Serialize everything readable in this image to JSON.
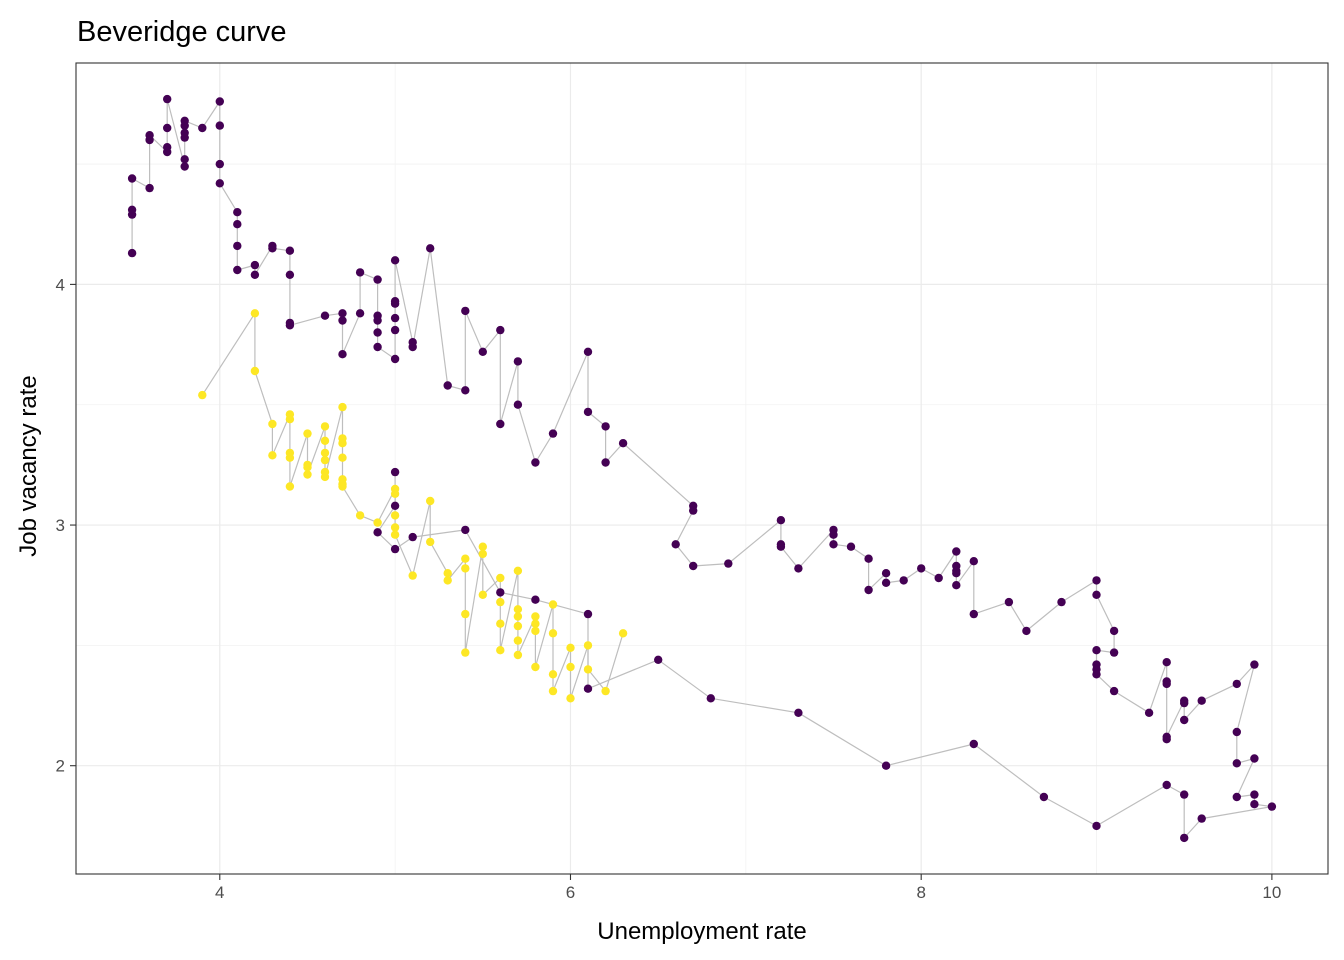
{
  "chart_data": {
    "type": "scatter",
    "title": "Beveridge curve",
    "xlabel": "Unemployment rate",
    "ylabel": "Job vacancy rate",
    "xlim": [
      3.18,
      10.32
    ],
    "ylim": [
      1.55,
      4.92
    ],
    "x_ticks": [
      4,
      6,
      8,
      10
    ],
    "y_ticks": [
      2,
      3,
      4
    ],
    "grid": true,
    "legend": "none",
    "connector_color": "#bebebe",
    "series": [
      {
        "color": "#440154",
        "points": [
          [
            3.5,
            4.13
          ],
          [
            3.5,
            4.29
          ],
          [
            3.5,
            4.31
          ],
          [
            3.5,
            4.44
          ],
          [
            3.6,
            4.4
          ],
          [
            3.6,
            4.6
          ],
          [
            3.6,
            4.62
          ],
          [
            3.7,
            4.55
          ],
          [
            3.7,
            4.57
          ],
          [
            3.7,
            4.65
          ],
          [
            3.7,
            4.77
          ],
          [
            3.8,
            4.49
          ],
          [
            3.8,
            4.52
          ],
          [
            3.8,
            4.61
          ],
          [
            3.8,
            4.63
          ],
          [
            3.8,
            4.66
          ],
          [
            3.8,
            4.68
          ],
          [
            3.9,
            4.65
          ],
          [
            4.0,
            4.76
          ],
          [
            4.0,
            4.66
          ],
          [
            4.0,
            4.5
          ],
          [
            4.0,
            4.42
          ],
          [
            4.1,
            4.3
          ],
          [
            4.1,
            4.25
          ],
          [
            4.1,
            4.16
          ],
          [
            4.1,
            4.06
          ],
          [
            4.2,
            4.08
          ],
          [
            4.2,
            4.04
          ],
          [
            4.3,
            4.16
          ],
          [
            4.3,
            4.15
          ],
          [
            4.4,
            4.14
          ],
          [
            4.4,
            4.04
          ],
          [
            4.4,
            3.84
          ],
          [
            4.4,
            3.83
          ],
          [
            4.6,
            3.87
          ],
          [
            4.7,
            3.88
          ],
          [
            4.7,
            3.85
          ],
          [
            4.7,
            3.71
          ],
          [
            4.8,
            3.88
          ],
          [
            4.8,
            4.05
          ],
          [
            4.9,
            4.02
          ],
          [
            4.9,
            3.87
          ],
          [
            4.9,
            3.85
          ],
          [
            4.9,
            3.8
          ],
          [
            4.9,
            3.74
          ],
          [
            5.0,
            3.69
          ],
          [
            5.0,
            3.81
          ],
          [
            5.0,
            3.86
          ],
          [
            5.0,
            3.92
          ],
          [
            5.0,
            3.93
          ],
          [
            5.0,
            4.1
          ],
          [
            5.1,
            3.76
          ],
          [
            5.1,
            3.74
          ],
          [
            5.2,
            4.15
          ],
          [
            5.3,
            3.58
          ],
          [
            5.4,
            3.56
          ],
          [
            5.4,
            3.89
          ],
          [
            5.5,
            3.72
          ],
          [
            5.6,
            3.81
          ],
          [
            5.6,
            3.42
          ],
          [
            5.7,
            3.68
          ],
          [
            5.7,
            3.5
          ],
          [
            5.8,
            3.26
          ],
          [
            5.9,
            3.38
          ],
          [
            6.1,
            3.72
          ],
          [
            6.1,
            3.47
          ],
          [
            6.2,
            3.41
          ],
          [
            6.2,
            3.26
          ],
          [
            6.3,
            3.34
          ],
          [
            6.7,
            3.08
          ],
          [
            6.7,
            3.06
          ],
          [
            6.6,
            2.92
          ],
          [
            6.7,
            2.83
          ],
          [
            6.9,
            2.84
          ],
          [
            7.2,
            3.02
          ],
          [
            7.2,
            2.92
          ],
          [
            7.2,
            2.91
          ],
          [
            7.3,
            2.82
          ],
          [
            7.5,
            2.98
          ],
          [
            7.5,
            2.96
          ],
          [
            7.5,
            2.92
          ],
          [
            7.6,
            2.91
          ],
          [
            7.7,
            2.86
          ],
          [
            7.7,
            2.73
          ],
          [
            7.8,
            2.8
          ],
          [
            7.8,
            2.76
          ],
          [
            7.9,
            2.77
          ],
          [
            8.0,
            2.82
          ],
          [
            8.1,
            2.78
          ],
          [
            8.2,
            2.89
          ],
          [
            8.2,
            2.83
          ],
          [
            8.2,
            2.81
          ],
          [
            8.2,
            2.8
          ],
          [
            8.2,
            2.75
          ],
          [
            8.3,
            2.85
          ],
          [
            8.3,
            2.63
          ],
          [
            8.5,
            2.68
          ],
          [
            8.6,
            2.56
          ],
          [
            8.8,
            2.68
          ],
          [
            9.0,
            2.77
          ],
          [
            9.0,
            2.71
          ],
          [
            9.1,
            2.56
          ],
          [
            9.1,
            2.47
          ],
          [
            9.0,
            2.48
          ],
          [
            9.0,
            2.42
          ],
          [
            9.0,
            2.4
          ],
          [
            9.0,
            2.38
          ],
          [
            9.1,
            2.31
          ],
          [
            9.3,
            2.22
          ],
          [
            9.4,
            2.43
          ],
          [
            9.4,
            2.35
          ],
          [
            9.4,
            2.34
          ],
          [
            9.4,
            2.11
          ],
          [
            9.4,
            2.12
          ],
          [
            9.5,
            2.27
          ],
          [
            9.5,
            2.26
          ],
          [
            9.5,
            2.19
          ],
          [
            9.6,
            2.27
          ],
          [
            9.8,
            2.34
          ],
          [
            9.9,
            2.42
          ],
          [
            9.8,
            2.14
          ],
          [
            9.8,
            2.01
          ],
          [
            9.9,
            2.03
          ],
          [
            9.8,
            1.87
          ],
          [
            9.9,
            1.88
          ],
          [
            9.9,
            1.84
          ],
          [
            10.0,
            1.83
          ],
          [
            9.6,
            1.78
          ],
          [
            9.5,
            1.7
          ],
          [
            9.5,
            1.88
          ],
          [
            9.4,
            1.92
          ],
          [
            9.0,
            1.75
          ],
          [
            8.7,
            1.87
          ],
          [
            8.3,
            2.09
          ],
          [
            7.8,
            2.0
          ],
          [
            7.3,
            2.22
          ],
          [
            6.8,
            2.28
          ],
          [
            6.5,
            2.44
          ],
          [
            6.1,
            2.32
          ],
          [
            6.1,
            2.63
          ],
          [
            5.8,
            2.69
          ],
          [
            5.6,
            2.72
          ],
          [
            5.4,
            2.98
          ],
          [
            5.1,
            2.95
          ],
          [
            5.0,
            2.9
          ],
          [
            4.9,
            2.97
          ],
          [
            5.0,
            3.08
          ],
          [
            5.0,
            3.22
          ]
        ]
      },
      {
        "color": "#fde725",
        "points": [
          [
            3.9,
            3.54
          ],
          [
            4.2,
            3.88
          ],
          [
            4.2,
            3.64
          ],
          [
            4.3,
            3.42
          ],
          [
            4.3,
            3.29
          ],
          [
            4.4,
            3.46
          ],
          [
            4.4,
            3.44
          ],
          [
            4.4,
            3.3
          ],
          [
            4.4,
            3.28
          ],
          [
            4.4,
            3.16
          ],
          [
            4.5,
            3.38
          ],
          [
            4.5,
            3.25
          ],
          [
            4.5,
            3.24
          ],
          [
            4.5,
            3.21
          ],
          [
            4.6,
            3.41
          ],
          [
            4.6,
            3.35
          ],
          [
            4.6,
            3.3
          ],
          [
            4.6,
            3.27
          ],
          [
            4.6,
            3.22
          ],
          [
            4.6,
            3.2
          ],
          [
            4.7,
            3.49
          ],
          [
            4.7,
            3.36
          ],
          [
            4.7,
            3.34
          ],
          [
            4.7,
            3.28
          ],
          [
            4.7,
            3.19
          ],
          [
            4.7,
            3.17
          ],
          [
            4.7,
            3.16
          ],
          [
            4.8,
            3.04
          ],
          [
            4.9,
            3.01
          ],
          [
            5.0,
            3.15
          ],
          [
            5.0,
            3.13
          ],
          [
            5.0,
            3.04
          ],
          [
            5.0,
            2.99
          ],
          [
            5.0,
            2.96
          ],
          [
            5.1,
            2.79
          ],
          [
            5.2,
            3.1
          ],
          [
            5.2,
            2.93
          ],
          [
            5.3,
            2.8
          ],
          [
            5.3,
            2.77
          ],
          [
            5.4,
            2.86
          ],
          [
            5.4,
            2.82
          ],
          [
            5.4,
            2.63
          ],
          [
            5.4,
            2.47
          ],
          [
            5.5,
            2.91
          ],
          [
            5.5,
            2.88
          ],
          [
            5.5,
            2.71
          ],
          [
            5.6,
            2.78
          ],
          [
            5.6,
            2.68
          ],
          [
            5.6,
            2.59
          ],
          [
            5.6,
            2.48
          ],
          [
            5.7,
            2.81
          ],
          [
            5.7,
            2.65
          ],
          [
            5.7,
            2.62
          ],
          [
            5.7,
            2.58
          ],
          [
            5.7,
            2.52
          ],
          [
            5.7,
            2.46
          ],
          [
            5.8,
            2.62
          ],
          [
            5.8,
            2.59
          ],
          [
            5.8,
            2.56
          ],
          [
            5.8,
            2.41
          ],
          [
            5.9,
            2.67
          ],
          [
            5.9,
            2.55
          ],
          [
            5.9,
            2.38
          ],
          [
            5.9,
            2.31
          ],
          [
            6.0,
            2.49
          ],
          [
            6.0,
            2.41
          ],
          [
            6.0,
            2.28
          ],
          [
            6.1,
            2.5
          ],
          [
            6.1,
            2.4
          ],
          [
            6.2,
            2.31
          ],
          [
            6.3,
            2.55
          ]
        ]
      }
    ]
  }
}
